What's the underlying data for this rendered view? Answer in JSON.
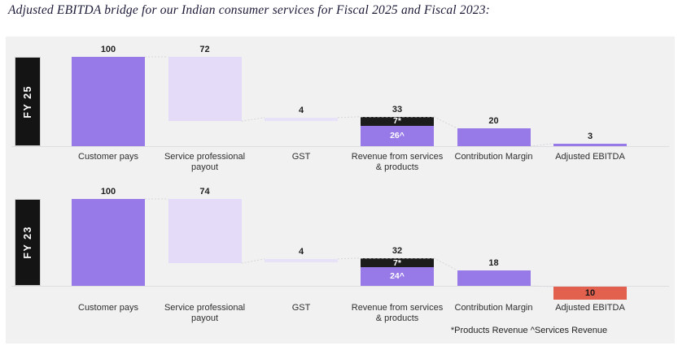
{
  "title": "Adjusted EBITDA bridge for our Indian consumer services for Fiscal 2025 and Fiscal 2023:",
  "colors": {
    "purple": "#9779e8",
    "lavender": "#e3dbf7",
    "lavender_light": "#e8e2f8",
    "black": "#1c1c1c",
    "red": "#e2604e",
    "panel_bg": "#f1f1f2",
    "baseline": "#dedee1",
    "connector": "#d6d6da",
    "white_text": "#ffffff"
  },
  "chart_data": {
    "type": "bar",
    "subtype": "waterfall_bridge",
    "title": "Adjusted EBITDA bridge for our Indian consumer services for Fiscal 2025 and Fiscal 2023:",
    "footnote": "*Products Revenue   ^Services Revenue",
    "legend": {
      "asterisk": "Products Revenue",
      "caret": "Services Revenue"
    },
    "categories": [
      "Customer pays",
      "Service professional payout",
      "GST",
      "Revenue from services & products",
      "Contribution Margin",
      "Adjusted EBITDA"
    ],
    "category_label_lines": [
      [
        "Customer pays"
      ],
      [
        "Service professional",
        "payout"
      ],
      [
        "GST"
      ],
      [
        "Revenue from services",
        "& products"
      ],
      [
        "Contribution Margin"
      ],
      [
        "Adjusted EBITDA"
      ]
    ],
    "rows": [
      {
        "label": "FY 25",
        "bars": [
          {
            "category": "Customer pays",
            "value": 100,
            "value_label": "100",
            "from": 0,
            "to": 100,
            "color": "purple"
          },
          {
            "category": "Service professional payout",
            "value": 72,
            "value_label": "72",
            "from": 28,
            "to": 100,
            "color": "lavender"
          },
          {
            "category": "GST",
            "value": 4,
            "value_label": "4",
            "from": 28,
            "to": 32,
            "color": "lavender_light"
          },
          {
            "category": "Revenue from services & products",
            "value": 33,
            "value_label": "33",
            "from": 0,
            "to": 33,
            "segments": [
              {
                "name": "Products Revenue",
                "value": 7,
                "label": "7*",
                "color": "black",
                "text_color": "#ffffff"
              },
              {
                "name": "Services Revenue",
                "value": 26,
                "label": "26^",
                "color": "purple",
                "text_color": "#ffffff"
              }
            ]
          },
          {
            "category": "Contribution Margin",
            "value": 20,
            "value_label": "20",
            "from": 0,
            "to": 20,
            "color": "purple"
          },
          {
            "category": "Adjusted EBITDA",
            "value": 3,
            "value_label": "3",
            "from": 0,
            "to": 3,
            "color": "purple"
          }
        ]
      },
      {
        "label": "FY 23",
        "bars": [
          {
            "category": "Customer pays",
            "value": 100,
            "value_label": "100",
            "from": 0,
            "to": 100,
            "color": "purple"
          },
          {
            "category": "Service professional payout",
            "value": 74,
            "value_label": "74",
            "from": 26,
            "to": 100,
            "color": "lavender"
          },
          {
            "category": "GST",
            "value": 4,
            "value_label": "4",
            "from": 27,
            "to": 31,
            "color": "lavender_light"
          },
          {
            "category": "Revenue from services & products",
            "value": 32,
            "value_label": "32",
            "from": 0,
            "to": 32,
            "segments": [
              {
                "name": "Products Revenue",
                "value": 7,
                "label": "7*",
                "color": "black",
                "text_color": "#ffffff"
              },
              {
                "name": "Services Revenue",
                "value": 24,
                "label": "24^",
                "color": "purple",
                "text_color": "#ffffff"
              }
            ]
          },
          {
            "category": "Contribution Margin",
            "value": 18,
            "value_label": "18",
            "from": 0,
            "to": 18,
            "color": "purple"
          },
          {
            "category": "Adjusted EBITDA",
            "value": 10,
            "value_label": "10",
            "negative": true,
            "color": "red",
            "label_inside": true
          }
        ]
      }
    ]
  }
}
